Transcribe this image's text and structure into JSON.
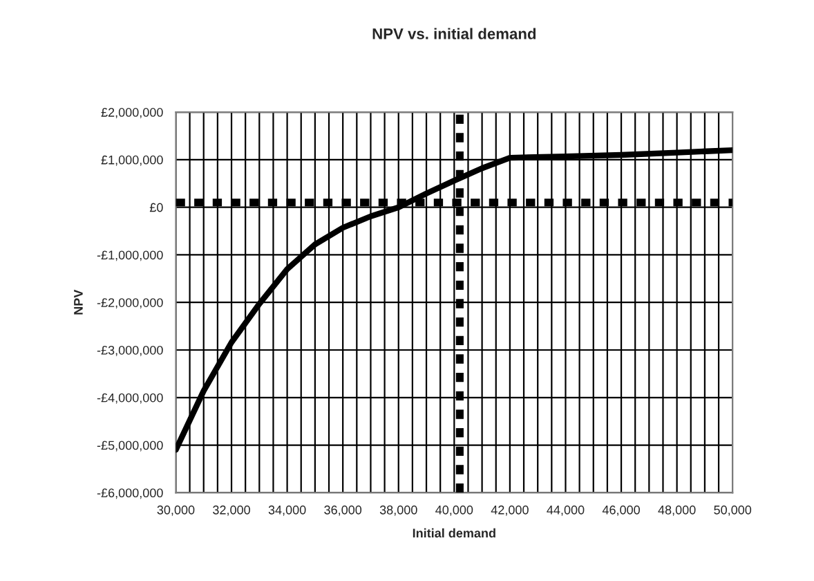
{
  "chart_data": {
    "type": "line",
    "title": "NPV vs. initial demand",
    "xlabel": "Initial demand",
    "ylabel": "NPV",
    "x": [
      30000,
      31000,
      32000,
      33000,
      34000,
      35000,
      36000,
      37000,
      38000,
      39000,
      40000,
      41000,
      42000,
      44000,
      46000,
      48000,
      50000
    ],
    "series": [
      {
        "color": "#000000",
        "values": [
          -5100000,
          -3860000,
          -2840000,
          -2030000,
          -1300000,
          -780000,
          -430000,
          -190000,
          0,
          290000,
          560000,
          820000,
          1040000,
          1070000,
          1100000,
          1150000,
          1200000
        ]
      }
    ],
    "xlim": [
      30000,
      50000
    ],
    "ylim": [
      -6000000,
      2000000
    ],
    "xticks": [
      {
        "value": 30000,
        "label": "30,000"
      },
      {
        "value": 30500,
        "label": null
      },
      {
        "value": 31000,
        "label": null
      },
      {
        "value": 31500,
        "label": null
      },
      {
        "value": 32000,
        "label": "32,000"
      },
      {
        "value": 32500,
        "label": null
      },
      {
        "value": 33000,
        "label": null
      },
      {
        "value": 33500,
        "label": null
      },
      {
        "value": 34000,
        "label": "34,000"
      },
      {
        "value": 34500,
        "label": null
      },
      {
        "value": 35000,
        "label": null
      },
      {
        "value": 35500,
        "label": null
      },
      {
        "value": 36000,
        "label": "36,000"
      },
      {
        "value": 36500,
        "label": null
      },
      {
        "value": 37000,
        "label": null
      },
      {
        "value": 37500,
        "label": null
      },
      {
        "value": 38000,
        "label": "38,000"
      },
      {
        "value": 38500,
        "label": null
      },
      {
        "value": 39000,
        "label": null
      },
      {
        "value": 39500,
        "label": null
      },
      {
        "value": 40000,
        "label": "40,000"
      },
      {
        "value": 40500,
        "label": null
      },
      {
        "value": 41000,
        "label": null
      },
      {
        "value": 41500,
        "label": null
      },
      {
        "value": 42000,
        "label": "42,000"
      },
      {
        "value": 42500,
        "label": null
      },
      {
        "value": 43000,
        "label": null
      },
      {
        "value": 43500,
        "label": null
      },
      {
        "value": 44000,
        "label": "44,000"
      },
      {
        "value": 44500,
        "label": null
      },
      {
        "value": 45000,
        "label": null
      },
      {
        "value": 45500,
        "label": null
      },
      {
        "value": 46000,
        "label": "46,000"
      },
      {
        "value": 46500,
        "label": null
      },
      {
        "value": 47000,
        "label": null
      },
      {
        "value": 47500,
        "label": null
      },
      {
        "value": 48000,
        "label": "48,000"
      },
      {
        "value": 48500,
        "label": null
      },
      {
        "value": 49000,
        "label": null
      },
      {
        "value": 49500,
        "label": null
      },
      {
        "value": 50000,
        "label": "50,000"
      }
    ],
    "yticks": [
      {
        "value": -6000000,
        "label": "-£6,000,000"
      },
      {
        "value": -5000000,
        "label": "-£5,000,000"
      },
      {
        "value": -4000000,
        "label": "-£4,000,000"
      },
      {
        "value": -3000000,
        "label": "-£3,000,000"
      },
      {
        "value": -2000000,
        "label": "-£2,000,000"
      },
      {
        "value": -1000000,
        "label": "-£1,000,000"
      },
      {
        "value": 0,
        "label": "£0"
      },
      {
        "value": 1000000,
        "label": "£1,000,000"
      },
      {
        "value": 2000000,
        "label": "£2,000,000"
      }
    ],
    "ref_lines": [
      {
        "axis": "y",
        "value": 100000,
        "color": "#000000",
        "line_style": "dotted"
      },
      {
        "axis": "x",
        "value": 40200,
        "color": "#000000",
        "line_style": "dotted"
      }
    ],
    "grid": true,
    "legend": false,
    "marker": "none",
    "line_style": "solid"
  }
}
